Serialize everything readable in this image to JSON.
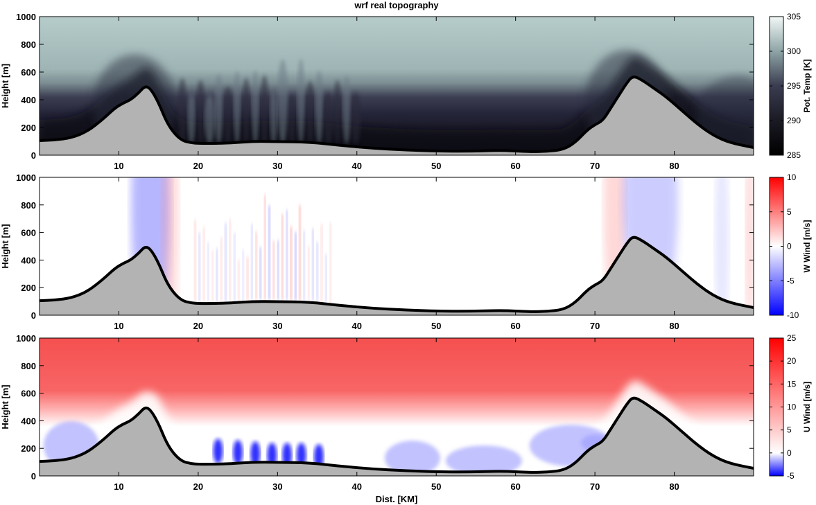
{
  "figure_title": "wrf real topography",
  "colors": {
    "terrain_fill": "#b3b3b3",
    "terrain_line": "#000000",
    "temp_dark": "#0c0c12",
    "temp_light": "#e4efee",
    "wind_negative": "#0000ff",
    "wind_positive": "#ff0000"
  },
  "chart_data": [
    {
      "type": "heatmap",
      "title": "wrf real topography",
      "xlabel": "",
      "ylabel": "Height [m]",
      "xlim": [
        0,
        90
      ],
      "ylim": [
        0,
        1000
      ],
      "xticks": [
        "10",
        "20",
        "30",
        "40",
        "50",
        "60",
        "70",
        "80"
      ],
      "yticks": [
        "0",
        "200",
        "400",
        "600",
        "800",
        "1000"
      ],
      "colorbar": {
        "label": "Pot. Temp [K]",
        "range": [
          285,
          305
        ],
        "ticks": [
          "285",
          "290",
          "295",
          "300",
          "305"
        ]
      },
      "field": "potential_temperature",
      "terrain": {
        "x": [
          0,
          2,
          4,
          6,
          8,
          9.5,
          10.5,
          11.5,
          12.5,
          13.3,
          14,
          15,
          16,
          17,
          18,
          19,
          20,
          22,
          24,
          27,
          30,
          34,
          38,
          42,
          46,
          50,
          54,
          58,
          60,
          62,
          64,
          66,
          67.5,
          69,
          70,
          71,
          72,
          73,
          74,
          74.8,
          76,
          77.5,
          79,
          81,
          83,
          85,
          87,
          90
        ],
        "height": [
          105,
          110,
          125,
          170,
          260,
          340,
          375,
          400,
          450,
          500,
          480,
          380,
          240,
          155,
          105,
          90,
          85,
          85,
          88,
          100,
          98,
          95,
          70,
          50,
          38,
          30,
          28,
          35,
          30,
          25,
          28,
          40,
          90,
          180,
          220,
          250,
          340,
          430,
          520,
          575,
          540,
          480,
          420,
          320,
          220,
          140,
          90,
          55
        ]
      }
    },
    {
      "type": "heatmap",
      "xlabel": "",
      "ylabel": "Height [m]",
      "xlim": [
        0,
        90
      ],
      "ylim": [
        0,
        1000
      ],
      "xticks": [
        "10",
        "20",
        "30",
        "40",
        "50",
        "60",
        "70",
        "80"
      ],
      "yticks": [
        "0",
        "200",
        "400",
        "600",
        "800",
        "1000"
      ],
      "colorbar": {
        "label": "W Wind [m/s]",
        "range": [
          -10,
          10
        ],
        "ticks": [
          "-10",
          "-5",
          "0",
          "5",
          "10"
        ]
      },
      "field": "vertical_wind",
      "terrain": "same"
    },
    {
      "type": "heatmap",
      "xlabel": "Dist. [KM]",
      "ylabel": "Height [m]",
      "xlim": [
        0,
        90
      ],
      "ylim": [
        0,
        1000
      ],
      "xticks": [
        "10",
        "20",
        "30",
        "40",
        "50",
        "60",
        "70",
        "80"
      ],
      "yticks": [
        "0",
        "200",
        "400",
        "600",
        "800",
        "1000"
      ],
      "colorbar": {
        "label": "U Wind [m/s]",
        "range": [
          -5,
          25
        ],
        "ticks": [
          "-5",
          "0",
          "5",
          "10",
          "15",
          "20",
          "25"
        ]
      },
      "field": "horizontal_wind",
      "terrain": "same"
    }
  ]
}
